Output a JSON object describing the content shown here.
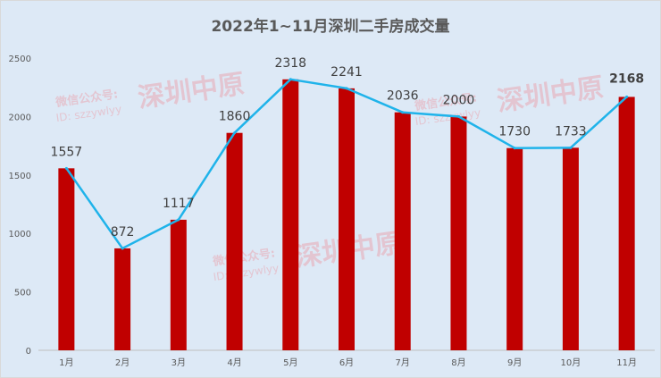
{
  "chart_data": {
    "type": "bar",
    "title": "2022年1~11月深圳二手房成交量",
    "categories": [
      "1月",
      "2月",
      "3月",
      "4月",
      "5月",
      "6月",
      "7月",
      "8月",
      "9月",
      "10月",
      "11月"
    ],
    "series": [
      {
        "type": "bar",
        "values": [
          1557,
          872,
          1117,
          1860,
          2318,
          2241,
          2036,
          2000,
          1730,
          1733,
          2168
        ],
        "color": "#c00000"
      },
      {
        "type": "line",
        "values": [
          1557,
          872,
          1117,
          1860,
          2318,
          2241,
          2036,
          2000,
          1730,
          1733,
          2168
        ],
        "color": "#1fb3ea"
      }
    ],
    "yticks": [
      0,
      500,
      1000,
      1500,
      2000,
      2500
    ],
    "ylim": [
      0,
      2500
    ],
    "grid": false,
    "legend": "none",
    "highlighted_label": "2168"
  },
  "watermark": {
    "line1": "微信公众号:",
    "line2": "ID: szzywlyy",
    "brand": "深圳中原"
  },
  "colors": {
    "background": "#dde9f6",
    "bar": "#c00000",
    "line": "#1fb3ea"
  }
}
